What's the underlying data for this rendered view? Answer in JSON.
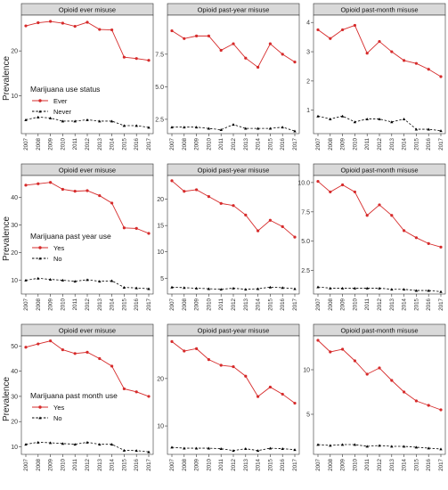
{
  "ylabel": "Prevalence",
  "years": [
    "2007",
    "2008",
    "2009",
    "2010",
    "2011",
    "2012",
    "2013",
    "2014",
    "2015",
    "2016",
    "2017"
  ],
  "colors": {
    "ever": "#d62b2b",
    "never": "#000000",
    "strip": "#d9d9d9",
    "axis": "#333333"
  },
  "legends": [
    {
      "title": "Marijuana use status",
      "items": [
        "Ever",
        "Never"
      ]
    },
    {
      "title": "Marijuana past year use",
      "items": [
        "Yes",
        "No"
      ]
    },
    {
      "title": "Marijuana past month use",
      "items": [
        "Yes",
        "No"
      ]
    }
  ],
  "chart_data": [
    {
      "type": "line",
      "title": "Opioid ever misuse",
      "ylim": [
        1.5,
        28
      ],
      "yticks": [
        10,
        20
      ],
      "series": [
        {
          "name": "Ever",
          "values": [
            25.6,
            26.3,
            26.6,
            26.2,
            25.5,
            26.4,
            24.8,
            24.7,
            18.6,
            18.3,
            17.9
          ]
        },
        {
          "name": "Never",
          "values": [
            4.6,
            5.2,
            5.0,
            4.3,
            4.3,
            4.6,
            4.3,
            4.3,
            3.3,
            3.3,
            2.9
          ]
        }
      ]
    },
    {
      "type": "line",
      "title": "Opioid past-year misuse",
      "ylim": [
        1.4,
        10.5
      ],
      "yticks": [
        2.5,
        5.0,
        7.5
      ],
      "series": [
        {
          "name": "Ever",
          "values": [
            9.3,
            8.7,
            8.9,
            8.9,
            7.8,
            8.3,
            7.2,
            6.5,
            8.3,
            7.5,
            6.9
          ]
        },
        {
          "name": "Never",
          "values": [
            1.9,
            1.9,
            1.9,
            1.8,
            1.7,
            2.1,
            1.8,
            1.8,
            1.8,
            1.9,
            1.6
          ]
        }
      ]
    },
    {
      "type": "line",
      "title": "Opioid past-month misuse",
      "ylim": [
        0.2,
        4.25
      ],
      "yticks": [
        1,
        2,
        3,
        4
      ],
      "series": [
        {
          "name": "Ever",
          "values": [
            3.75,
            3.45,
            3.75,
            3.9,
            2.95,
            3.35,
            3.0,
            2.7,
            2.6,
            2.4,
            2.15
          ]
        },
        {
          "name": "Never",
          "values": [
            0.8,
            0.7,
            0.8,
            0.6,
            0.7,
            0.7,
            0.6,
            0.7,
            0.35,
            0.35,
            0.3
          ]
        }
      ]
    },
    {
      "type": "line",
      "title": "Opioid ever misuse",
      "ylim": [
        5,
        48
      ],
      "yticks": [
        10,
        20,
        30,
        40
      ],
      "series": [
        {
          "name": "Yes",
          "values": [
            44.5,
            45.0,
            45.5,
            43.0,
            42.3,
            42.5,
            40.7,
            38.0,
            29.0,
            28.8,
            27.0
          ]
        },
        {
          "name": "No",
          "values": [
            10.0,
            10.7,
            10.3,
            10.0,
            9.6,
            10.2,
            9.6,
            9.8,
            7.4,
            7.2,
            6.9
          ]
        }
      ]
    },
    {
      "type": "line",
      "title": "Opioid past-year misuse",
      "ylim": [
        2,
        24.5
      ],
      "yticks": [
        5,
        10,
        15,
        20
      ],
      "series": [
        {
          "name": "Yes",
          "values": [
            23.5,
            21.5,
            21.8,
            20.5,
            19.2,
            18.8,
            17.0,
            14.0,
            16.0,
            14.8,
            12.8
          ]
        },
        {
          "name": "No",
          "values": [
            3.3,
            3.2,
            3.1,
            3.0,
            2.9,
            3.1,
            2.9,
            3.0,
            3.3,
            3.2,
            3.0
          ]
        }
      ]
    },
    {
      "type": "line",
      "title": "Opioid past-month misuse",
      "ylim": [
        0.5,
        10.6
      ],
      "yticks": [
        2.5,
        5.0,
        7.5,
        10.0
      ],
      "series": [
        {
          "name": "Yes",
          "values": [
            10.1,
            9.2,
            9.8,
            9.2,
            7.2,
            8.1,
            7.2,
            5.9,
            5.3,
            4.8,
            4.5
          ]
        },
        {
          "name": "No",
          "values": [
            1.1,
            1.0,
            1.0,
            1.0,
            1.0,
            1.0,
            0.9,
            0.9,
            0.8,
            0.8,
            0.7
          ]
        }
      ]
    },
    {
      "type": "line",
      "title": "Opioid ever misuse",
      "ylim": [
        7,
        54
      ],
      "yticks": [
        10,
        20,
        30,
        40,
        50
      ],
      "series": [
        {
          "name": "Yes",
          "values": [
            49.5,
            50.8,
            52.0,
            48.5,
            47.0,
            47.5,
            45.0,
            42.0,
            33.0,
            31.8,
            30.0
          ]
        },
        {
          "name": "No",
          "values": [
            11.0,
            11.8,
            11.6,
            11.3,
            11.0,
            11.8,
            11.0,
            11.0,
            8.6,
            8.5,
            8.0
          ]
        }
      ]
    },
    {
      "type": "line",
      "title": "Opioid past-year misuse",
      "ylim": [
        4,
        29
      ],
      "yticks": [
        10,
        20
      ],
      "series": [
        {
          "name": "Yes",
          "values": [
            27.8,
            25.8,
            26.3,
            24.0,
            22.8,
            22.5,
            20.5,
            16.2,
            18.2,
            16.7,
            14.8
          ]
        },
        {
          "name": "No",
          "values": [
            5.5,
            5.3,
            5.3,
            5.3,
            5.2,
            4.8,
            5.2,
            4.8,
            5.3,
            5.2,
            5.0
          ]
        }
      ]
    },
    {
      "type": "line",
      "title": "Opioid past-month misuse",
      "ylim": [
        0.5,
        13.8
      ],
      "yticks": [
        5,
        10
      ],
      "series": [
        {
          "name": "Yes",
          "values": [
            13.3,
            12.0,
            12.3,
            11.0,
            9.5,
            10.2,
            8.8,
            7.5,
            6.5,
            6.0,
            5.5
          ]
        },
        {
          "name": "No",
          "values": [
            1.6,
            1.5,
            1.6,
            1.6,
            1.4,
            1.5,
            1.4,
            1.4,
            1.3,
            1.2,
            1.1
          ]
        }
      ]
    }
  ]
}
